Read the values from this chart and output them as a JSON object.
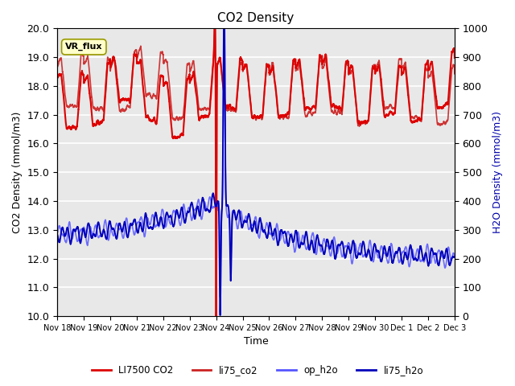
{
  "title": "CO2 Density",
  "xlabel": "Time",
  "ylabel_left": "CO2 Density (mmol/m3)",
  "ylabel_right": "H2O Density (mmol/m3)",
  "ylim_left": [
    10.0,
    20.0
  ],
  "ylim_right": [
    0,
    1000
  ],
  "yticks_left": [
    10.0,
    11.0,
    12.0,
    13.0,
    14.0,
    15.0,
    16.0,
    17.0,
    18.0,
    19.0,
    20.0
  ],
  "yticks_right": [
    0,
    100,
    200,
    300,
    400,
    500,
    600,
    700,
    800,
    900,
    1000
  ],
  "xtick_labels": [
    "Nov 18",
    "Nov 19",
    "Nov 20",
    "Nov 21",
    "Nov 22",
    "Nov 23",
    "Nov 24",
    "Nov 25",
    "Nov 26",
    "Nov 27",
    "Nov 28",
    "Nov 29",
    "Nov 30",
    "Dec 1",
    "Dec 2",
    "Dec 3"
  ],
  "background_color": "#e8e8e8",
  "grid_color": "#ffffff",
  "annotation_text": "VR_flux",
  "annotation_bg": "#ffffcc",
  "legend_entries": [
    "LI7500 CO2",
    "li75_co2",
    "op_h2o",
    "li75_h2o"
  ],
  "co2_color": "#dd0000",
  "co2_li75_color": "#cc2222",
  "h2o_op_color": "#5555ff",
  "h2o_li75_color": "#0000bb",
  "line_width": 1.2
}
